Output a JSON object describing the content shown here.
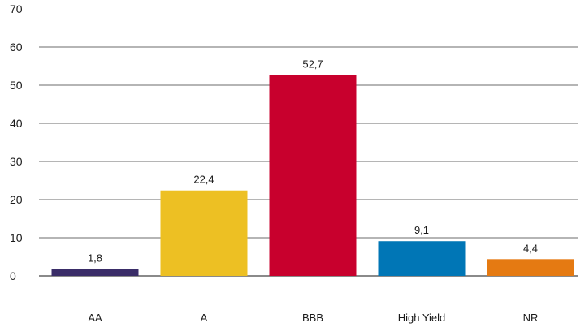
{
  "chart_data": {
    "type": "bar",
    "categories": [
      "AA",
      "A",
      "BBB",
      "High Yield",
      "NR"
    ],
    "values": [
      1.8,
      22.4,
      52.7,
      9.1,
      4.4
    ],
    "value_labels": [
      "1,8",
      "22,4",
      "52,7",
      "9,1",
      "4,4"
    ],
    "colors": [
      "#3a2d68",
      "#edc023",
      "#c8002d",
      "#0076b6",
      "#e57a12"
    ],
    "ylim": [
      0,
      70
    ],
    "yticks": [
      0,
      10,
      20,
      30,
      40,
      50,
      60,
      70
    ],
    "ytick_labels": [
      "0",
      "10",
      "20",
      "30",
      "40",
      "50",
      "60",
      "70"
    ],
    "grid": true,
    "legend": "none"
  }
}
